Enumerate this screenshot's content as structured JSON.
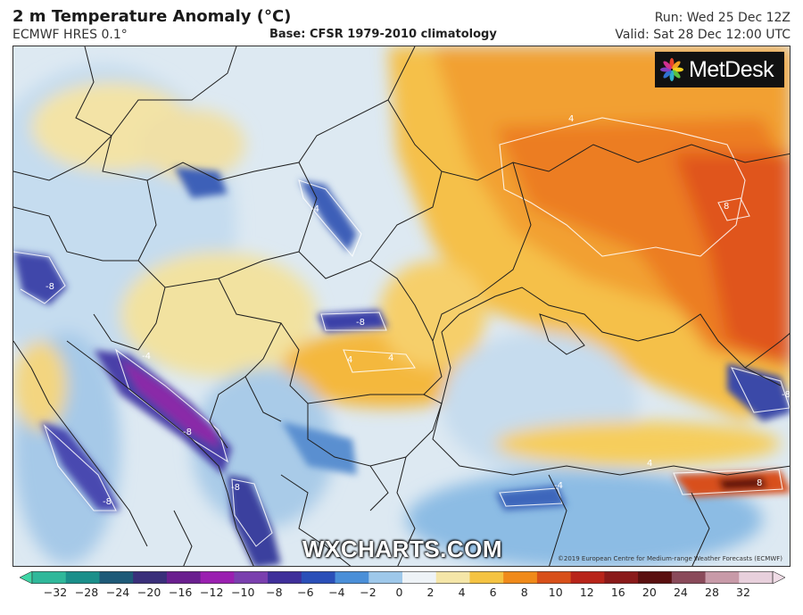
{
  "header": {
    "title": "2 m Temperature Anomaly (°C)",
    "model": "ECMWF HRES 0.1°",
    "base": "Base: CFSR 1979-2010 climatology",
    "run": "Run: Wed 25 Dec 12Z",
    "valid": "Valid: Sat 28 Dec 12:00 UTC"
  },
  "logo": {
    "text": "MetDesk",
    "icon": "metdesk-star-icon"
  },
  "watermark": "WXCHARTS.COM",
  "copyright": "©2019 European Centre for Medium-range Weather Forecasts (ECMWF)",
  "colorbar": {
    "ticks": [
      "−32",
      "−28",
      "−24",
      "−20",
      "−16",
      "−12",
      "−10",
      "−8",
      "−6",
      "−4",
      "−2",
      "0",
      "2",
      "4",
      "6",
      "8",
      "10",
      "12",
      "16",
      "20",
      "24",
      "28",
      "32"
    ],
    "colors": [
      "#2fb89a",
      "#1a8f8a",
      "#1e5a78",
      "#3a2f7a",
      "#6a1f8f",
      "#9a1fb0",
      "#7a3fae",
      "#3f2f9a",
      "#2a4fb8",
      "#4a8fd8",
      "#9ec8ea",
      "#eef3f7",
      "#f5e6a8",
      "#f5c342",
      "#f08a1a",
      "#d8501a",
      "#b8241a",
      "#8a1a1a",
      "#5a1010",
      "#8a4a5a",
      "#c89aa8",
      "#e8d0dc"
    ]
  },
  "map_labels": [
    {
      "text": "4",
      "pos": "ukraine-north"
    },
    {
      "text": "8",
      "pos": "russia-east"
    },
    {
      "text": "-4",
      "pos": "carpathians-west"
    },
    {
      "text": "-8",
      "pos": "alps-east"
    },
    {
      "text": "-8",
      "pos": "transylvania"
    },
    {
      "text": "4",
      "pos": "wallachia"
    },
    {
      "text": "4",
      "pos": "wallachia-east"
    },
    {
      "text": "-4",
      "pos": "dinaric-north"
    },
    {
      "text": "-8",
      "pos": "dinaric-south"
    },
    {
      "text": "-8",
      "pos": "apennines"
    },
    {
      "text": "-8",
      "pos": "albania"
    },
    {
      "text": "-4",
      "pos": "anatolia-north"
    },
    {
      "text": "4",
      "pos": "anatolia-east"
    },
    {
      "text": "8",
      "pos": "anatolia-east2"
    },
    {
      "text": "-8",
      "pos": "caucasus"
    }
  ]
}
